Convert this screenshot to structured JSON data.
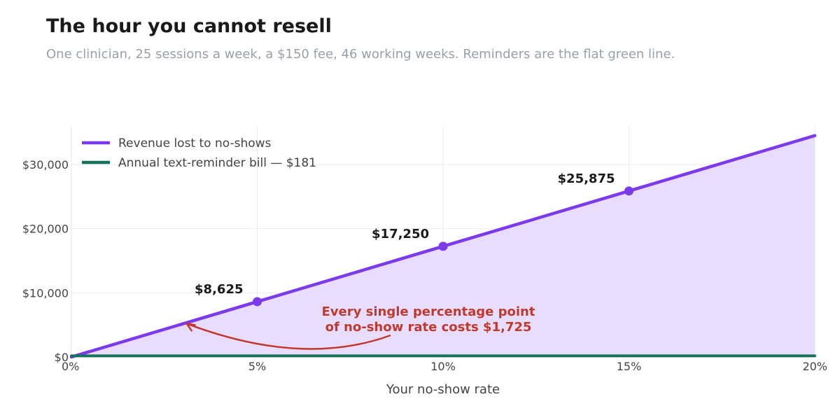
{
  "chart_data": {
    "type": "line",
    "title": "The hour you cannot resell",
    "subtitle": "One clinician, 25 sessions a week, a $150 fee, 46 working weeks. Reminders are the flat green line.",
    "xlabel": "Your no-show rate",
    "ylabel": "",
    "xlim": [
      0,
      20
    ],
    "ylim": [
      0,
      36000
    ],
    "x_ticks": [
      {
        "value": 0,
        "label": "0%"
      },
      {
        "value": 5,
        "label": "5%"
      },
      {
        "value": 10,
        "label": "10%"
      },
      {
        "value": 15,
        "label": "15%"
      },
      {
        "value": 20,
        "label": "20%"
      }
    ],
    "y_ticks": [
      {
        "value": 0,
        "label": "$0"
      },
      {
        "value": 10000,
        "label": "$10,000"
      },
      {
        "value": 20000,
        "label": "$20,000"
      },
      {
        "value": 30000,
        "label": "$30,000"
      }
    ],
    "grid": true,
    "legend_position": "top-left",
    "series": [
      {
        "name": "Revenue lost to no-shows",
        "color": "#7c3aed",
        "fill": "#e9ddff",
        "x": [
          0,
          20
        ],
        "y": [
          0,
          34500
        ],
        "markers": [
          {
            "x": 5,
            "y": 8625,
            "label": "$8,625"
          },
          {
            "x": 10,
            "y": 17250,
            "label": "$17,250"
          },
          {
            "x": 15,
            "y": 25875,
            "label": "$25,875"
          }
        ]
      },
      {
        "name": "Annual text-reminder bill  —  $181",
        "color": "#16725a",
        "x": [
          0,
          20
        ],
        "y": [
          181,
          181
        ]
      }
    ],
    "annotation": {
      "lines": [
        "Every single percentage point",
        "of no-show rate costs $1,725"
      ],
      "color": "#c0392b",
      "arrow_to": {
        "x": 3.1,
        "y": 5200
      }
    }
  }
}
